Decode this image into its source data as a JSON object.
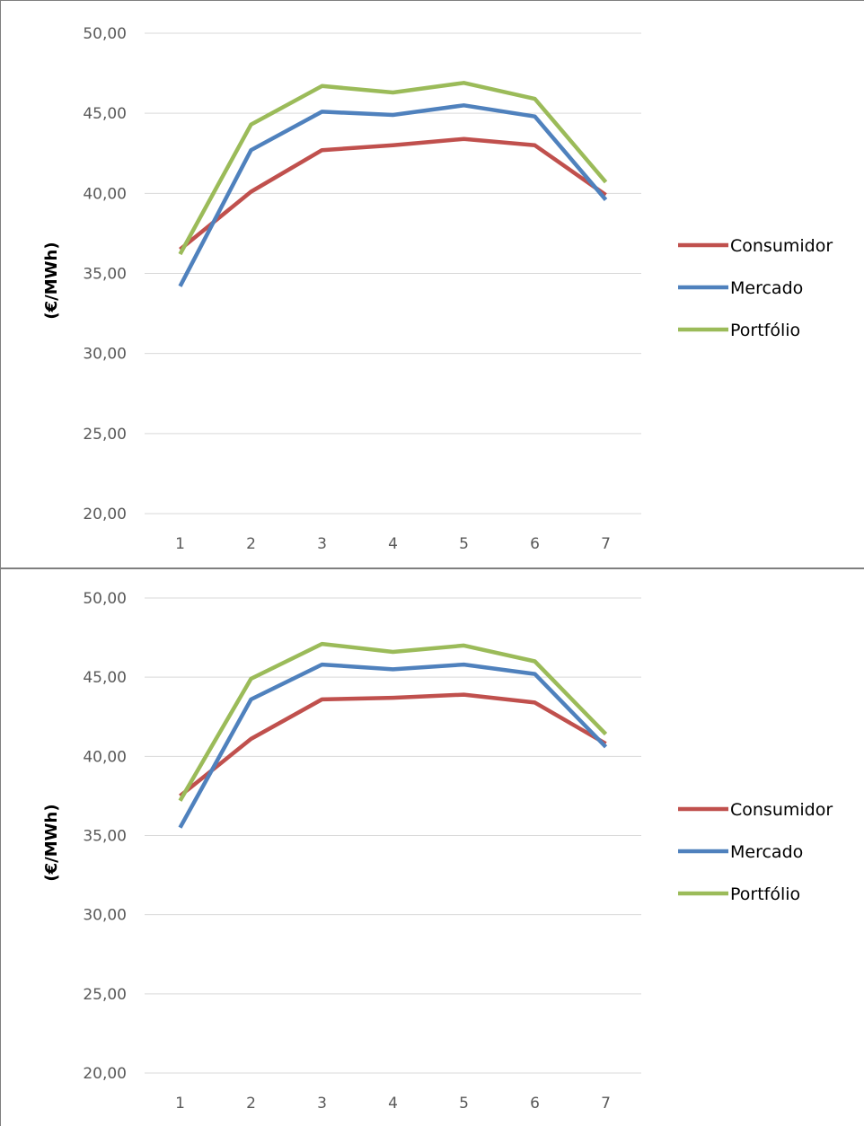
{
  "chart_data": [
    {
      "type": "line",
      "ylabel": "(€/MWh)",
      "xlabel": "",
      "categories": [
        "1",
        "2",
        "3",
        "4",
        "5",
        "6",
        "7"
      ],
      "ylim": [
        20,
        50
      ],
      "yticks": [
        "20,00",
        "25,00",
        "30,00",
        "35,00",
        "40,00",
        "45,00",
        "50,00"
      ],
      "grid": true,
      "legend_position": "right",
      "series": [
        {
          "name": "Consumidor",
          "color": "#c0504d",
          "values": [
            36.5,
            40.1,
            42.7,
            43.0,
            43.4,
            43.0,
            39.9
          ]
        },
        {
          "name": "Mercado",
          "color": "#4f81bd",
          "values": [
            34.2,
            42.7,
            45.1,
            44.9,
            45.5,
            44.8,
            39.6
          ]
        },
        {
          "name": "Portfólio",
          "color": "#9bbb59",
          "values": [
            36.2,
            44.3,
            46.7,
            46.3,
            46.9,
            45.9,
            40.7
          ]
        }
      ]
    },
    {
      "type": "line",
      "ylabel": "(€/MWh)",
      "xlabel": "",
      "categories": [
        "1",
        "2",
        "3",
        "4",
        "5",
        "6",
        "7"
      ],
      "ylim": [
        20,
        50
      ],
      "yticks": [
        "20,00",
        "25,00",
        "30,00",
        "35,00",
        "40,00",
        "45,00",
        "50,00"
      ],
      "grid": true,
      "legend_position": "right",
      "series": [
        {
          "name": "Consumidor",
          "color": "#c0504d",
          "values": [
            37.5,
            41.1,
            43.6,
            43.7,
            43.9,
            43.4,
            40.8
          ]
        },
        {
          "name": "Mercado",
          "color": "#4f81bd",
          "values": [
            35.5,
            43.6,
            45.8,
            45.5,
            45.8,
            45.2,
            40.6
          ]
        },
        {
          "name": "Portfólio",
          "color": "#9bbb59",
          "values": [
            37.2,
            44.9,
            47.1,
            46.6,
            47.0,
            46.0,
            41.4
          ]
        }
      ]
    }
  ]
}
